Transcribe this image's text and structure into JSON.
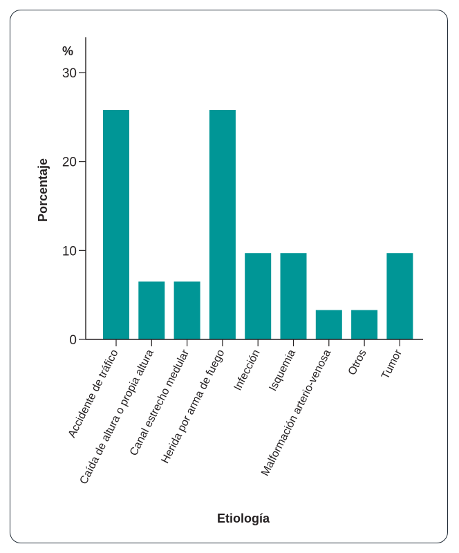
{
  "chart_data": {
    "type": "bar",
    "title": "",
    "xlabel": "Etiología",
    "ylabel": "Porcentaje",
    "yunit": "%",
    "ylim": [
      0,
      34
    ],
    "yticks": [
      0,
      10,
      20,
      30
    ],
    "categories": [
      "Accidente de tráfico",
      "Caída de altura o propia altura",
      "Canal estrecho medular",
      "Herida por arma de fuego",
      "Infección",
      "Isquemia",
      "Malformación arterio-venosa",
      "Otros",
      "Tumor"
    ],
    "values": [
      25.8,
      6.5,
      6.5,
      25.8,
      9.7,
      9.7,
      3.3,
      3.3,
      9.7
    ],
    "colors": {
      "bar": "#009696",
      "axis": "#231f20"
    }
  }
}
